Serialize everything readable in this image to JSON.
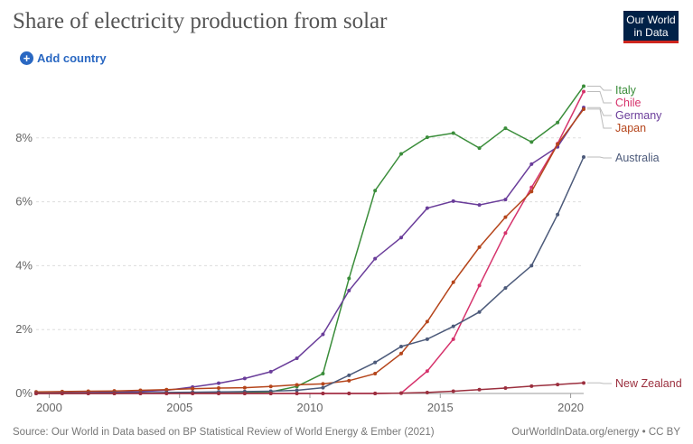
{
  "header": {
    "title": "Share of electricity production from solar",
    "logo_line1": "Our World",
    "logo_line2": "in Data",
    "add_country_label": "Add country"
  },
  "footer": {
    "source": "Source: Our World in Data based on BP Statistical Review of World Energy & Ember (2021)",
    "credit": "OurWorldInData.org/energy • CC BY"
  },
  "chart_data": {
    "type": "line",
    "title": "Share of electricity production from solar",
    "xlim": [
      1999.5,
      2020.5
    ],
    "ylim": [
      0,
      10
    ],
    "x_ticks": [
      2000,
      2005,
      2010,
      2015,
      2020
    ],
    "y_ticks": [
      0,
      2,
      4,
      6,
      8
    ],
    "y_tick_labels": [
      "0%",
      "2%",
      "4%",
      "6%",
      "8%"
    ],
    "grid": "horizontal dashed",
    "legend": "right, inline labels at line ends",
    "x": [
      1999.5,
      2000.5,
      2001.5,
      2002.5,
      2003.5,
      2004.5,
      2005.5,
      2006.5,
      2007.5,
      2008.5,
      2009.5,
      2010.5,
      2011.5,
      2012.5,
      2013.5,
      2014.5,
      2015.5,
      2016.5,
      2017.5,
      2018.5,
      2019.5,
      2020.5
    ],
    "series": [
      {
        "name": "Italy",
        "color": "#3a8d3a",
        "values": [
          0,
          0,
          0,
          0,
          0.01,
          0.01,
          0.01,
          0.01,
          0.02,
          0.05,
          0.22,
          0.62,
          3.6,
          6.35,
          7.5,
          8.02,
          8.15,
          7.68,
          8.3,
          7.87,
          8.48,
          9.62
        ]
      },
      {
        "name": "Chile",
        "color": "#d6336c",
        "values": [
          0,
          0,
          0,
          0,
          0,
          0,
          0,
          0,
          0,
          0,
          0,
          0,
          0,
          0,
          0.01,
          0.7,
          1.7,
          3.38,
          5.02,
          6.45,
          7.82,
          9.45
        ]
      },
      {
        "name": "Germany",
        "color": "#6a3d9a",
        "values": [
          0.01,
          0.02,
          0.03,
          0.04,
          0.06,
          0.1,
          0.2,
          0.32,
          0.47,
          0.68,
          1.1,
          1.85,
          3.22,
          4.22,
          4.88,
          5.8,
          6.02,
          5.9,
          6.07,
          7.18,
          7.72,
          8.95
        ]
      },
      {
        "name": "Japan",
        "color": "#b5451b",
        "values": [
          0.05,
          0.06,
          0.07,
          0.08,
          0.1,
          0.12,
          0.15,
          0.17,
          0.18,
          0.22,
          0.27,
          0.3,
          0.4,
          0.62,
          1.25,
          2.25,
          3.48,
          4.58,
          5.52,
          6.32,
          7.8,
          8.9
        ]
      },
      {
        "name": "Australia",
        "color": "#4c5a7a",
        "values": [
          0.01,
          0.01,
          0.01,
          0.02,
          0.02,
          0.03,
          0.04,
          0.05,
          0.06,
          0.07,
          0.1,
          0.18,
          0.57,
          0.97,
          1.47,
          1.7,
          2.1,
          2.55,
          3.3,
          4.0,
          5.6,
          7.4
        ]
      },
      {
        "name": "New Zealand",
        "color": "#9b2f3e",
        "values": [
          0,
          0,
          0,
          0,
          0,
          0,
          0,
          0,
          0,
          0,
          0,
          0,
          0,
          0,
          0.01,
          0.03,
          0.07,
          0.12,
          0.17,
          0.23,
          0.28,
          0.33
        ]
      }
    ]
  }
}
